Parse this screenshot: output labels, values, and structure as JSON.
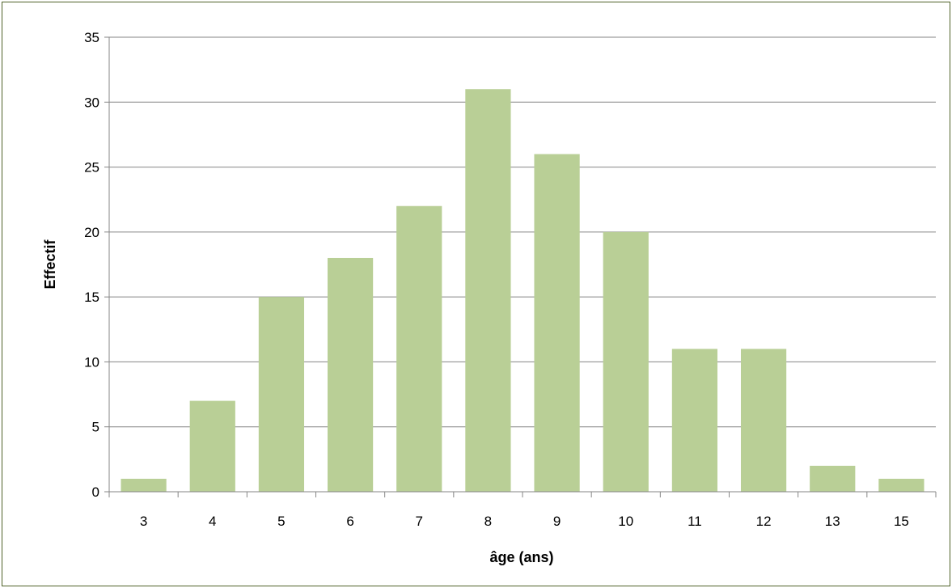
{
  "chart_data": {
    "type": "bar",
    "categories": [
      "3",
      "4",
      "5",
      "6",
      "7",
      "8",
      "9",
      "10",
      "11",
      "12",
      "13",
      "15"
    ],
    "values": [
      1,
      7,
      15,
      18,
      22,
      31,
      26,
      20,
      11,
      11,
      2,
      1
    ],
    "xlabel": "âge (ans)",
    "ylabel": "Effectif",
    "ylim": [
      0,
      35
    ],
    "yticks": [
      0,
      5,
      10,
      15,
      20,
      25,
      30,
      35
    ],
    "grid": true,
    "bar_color": "#b9cf96",
    "grid_color": "#868686"
  }
}
